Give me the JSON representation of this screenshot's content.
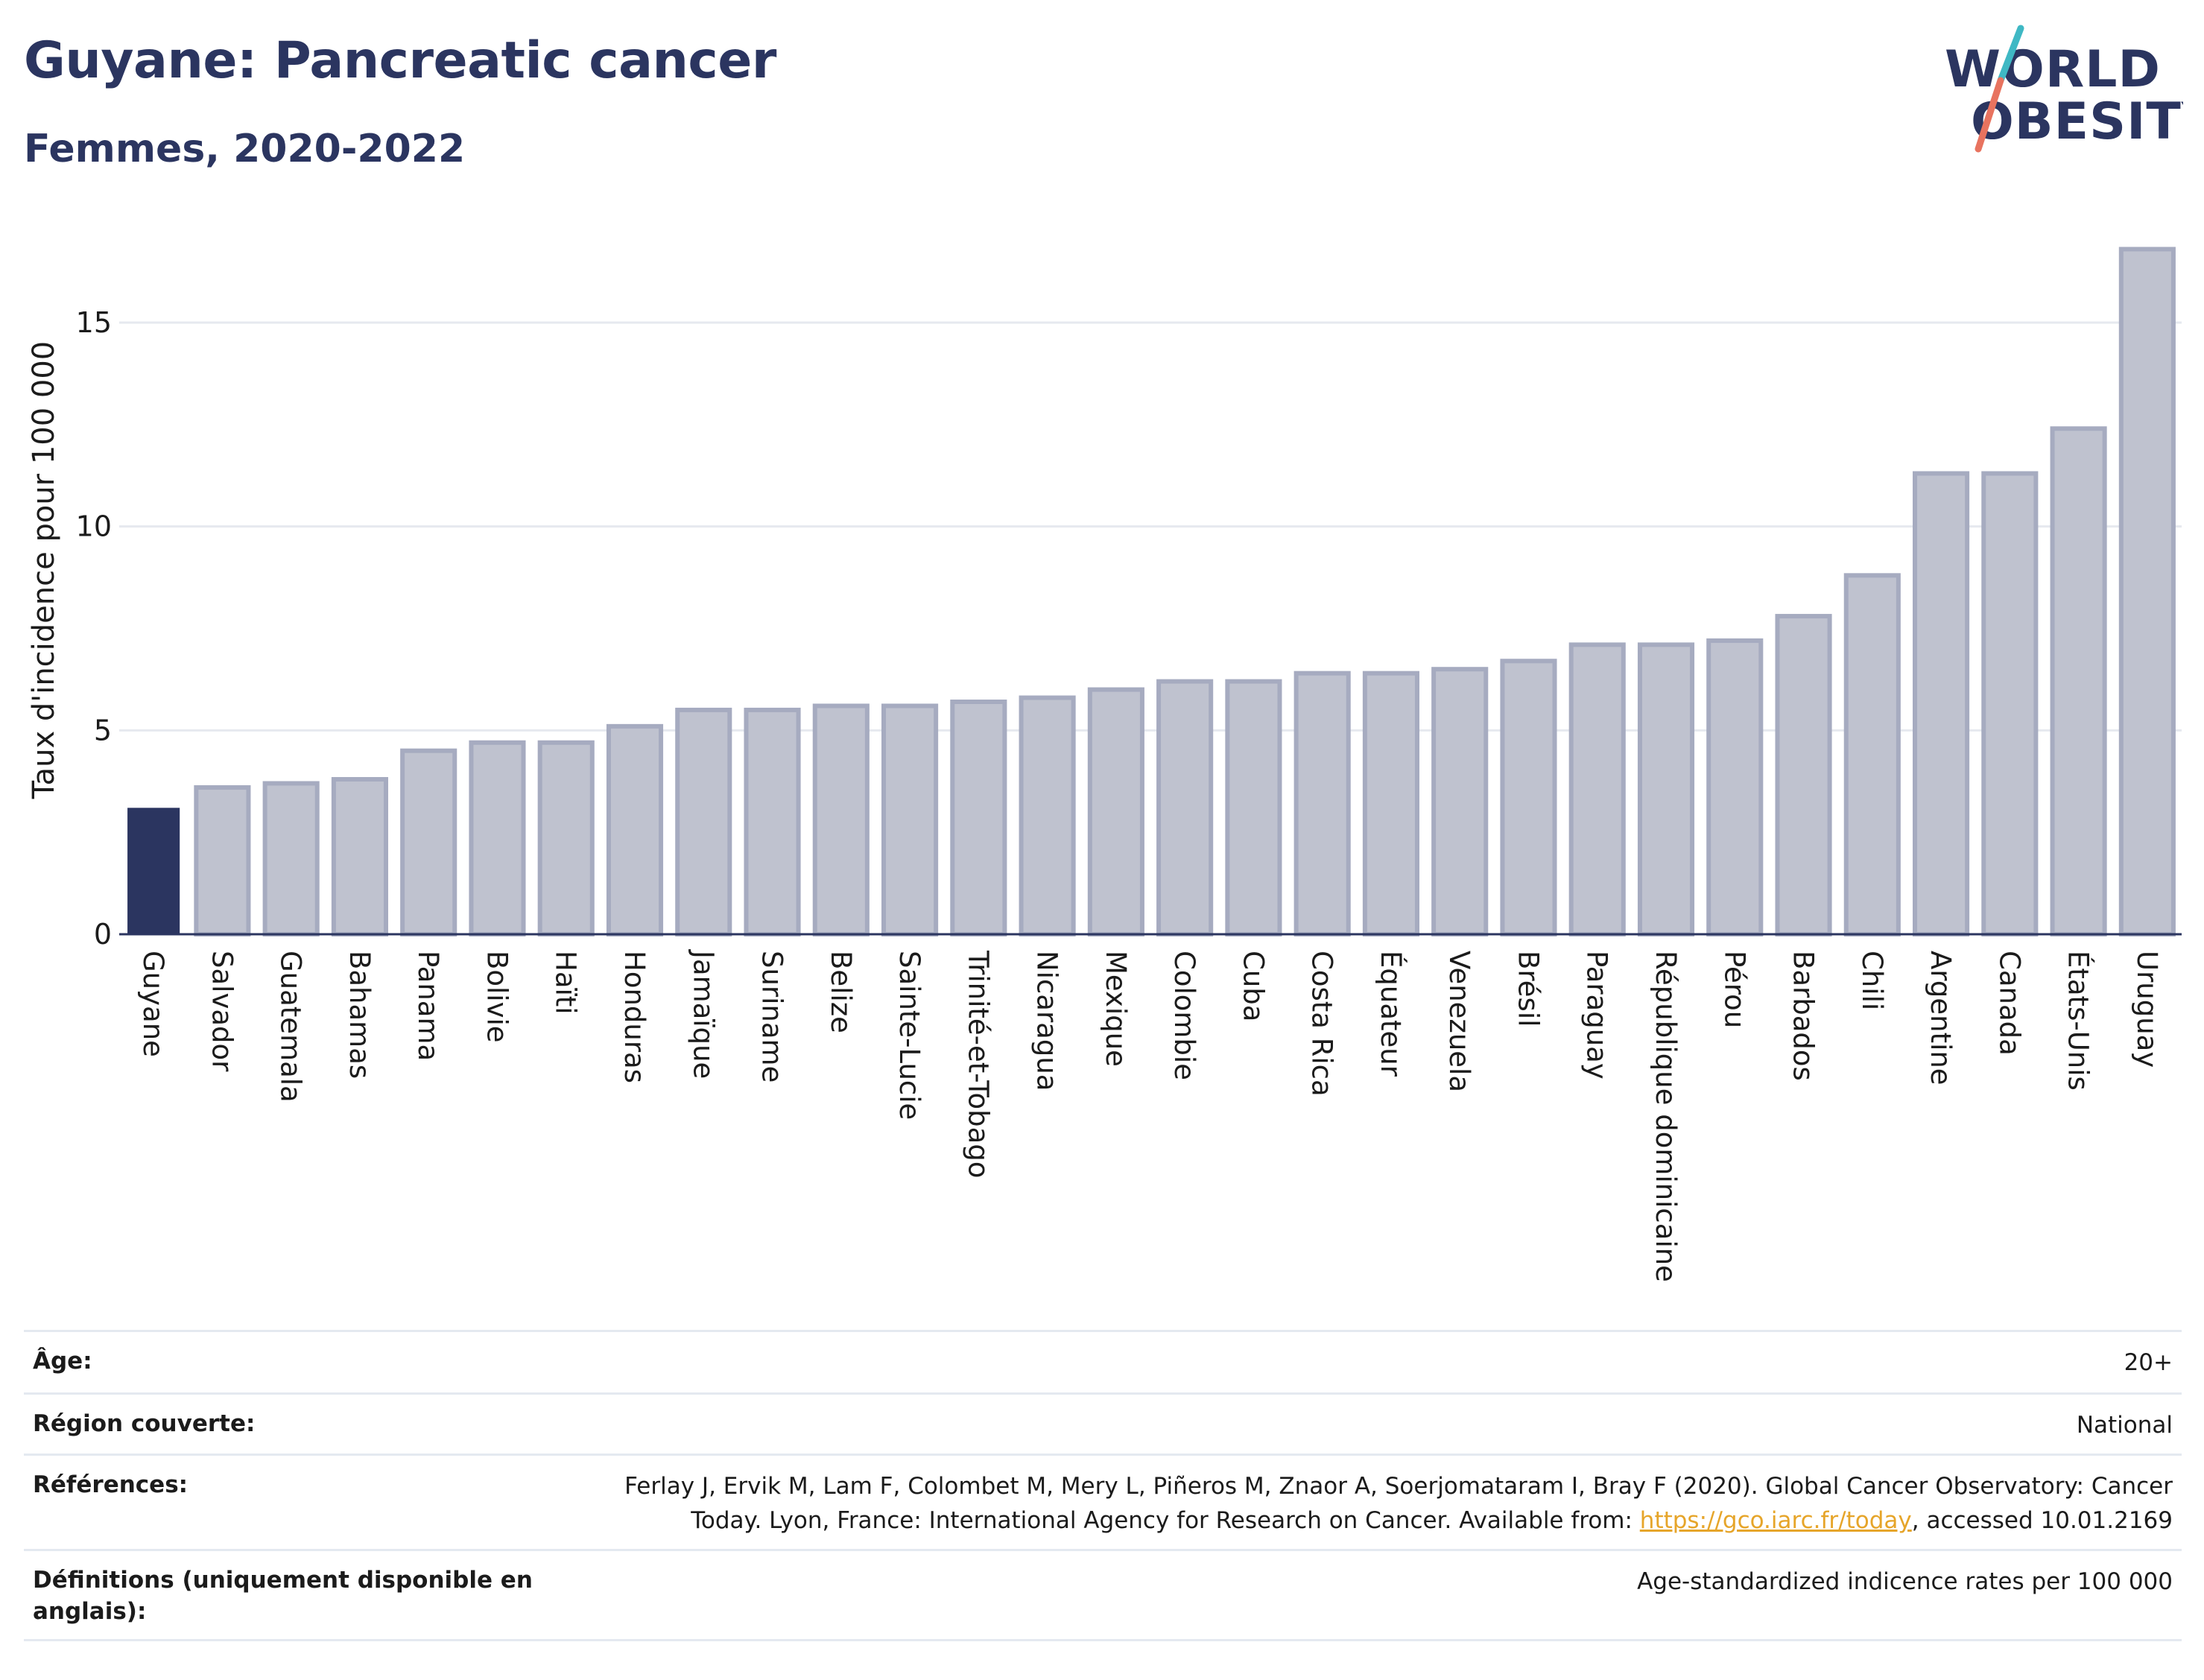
{
  "header": {
    "title": "Guyane: Pancreatic cancer",
    "subtitle": "Femmes, 2020-2022"
  },
  "logo": {
    "line1": "WORLD",
    "line2": "OBESITY",
    "colors": {
      "text": "#2b3560",
      "slash_teal": "#3fb8c4",
      "slash_coral": "#e8735f"
    }
  },
  "colors": {
    "highlight_bar": "#2b3560",
    "bar_fill": "#bfc2cf",
    "bar_stroke": "#a6abc0",
    "grid": "#e6e9ef",
    "axis": "#2b3560"
  },
  "chart_data": {
    "type": "bar",
    "ylabel": "Taux d'incidence pour 100 000",
    "ylim": [
      0,
      17.1
    ],
    "yticks": [
      0,
      5,
      10,
      15
    ],
    "grid": true,
    "highlight": "Guyane",
    "categories": [
      "Guyane",
      "Salvador",
      "Guatemala",
      "Bahamas",
      "Panama",
      "Bolivie",
      "Haïti",
      "Honduras",
      "Jamaïque",
      "Suriname",
      "Belize",
      "Sainte-Lucie",
      "Trinité-et-Tobago",
      "Nicaragua",
      "Mexique",
      "Colombie",
      "Cuba",
      "Costa Rica",
      "Équateur",
      "Venezuela",
      "Brésil",
      "Paraguay",
      "République dominicaine",
      "Pérou",
      "Barbados",
      "Chili",
      "Argentine",
      "Canada",
      "États-Unis",
      "Uruguay"
    ],
    "values": [
      3.1,
      3.6,
      3.7,
      3.8,
      4.5,
      4.7,
      4.7,
      5.1,
      5.5,
      5.5,
      5.6,
      5.6,
      5.7,
      5.8,
      6.0,
      6.2,
      6.2,
      6.4,
      6.4,
      6.5,
      6.7,
      7.1,
      7.1,
      7.2,
      7.8,
      8.8,
      11.3,
      11.3,
      12.4,
      16.8
    ]
  },
  "info": {
    "rows": [
      {
        "label": "Âge:",
        "value": "20+"
      },
      {
        "label": "Région couverte:",
        "value": "National"
      },
      {
        "label": "Références:",
        "value_line1": "Ferlay J, Ervik M, Lam F, Colombet M, Mery L, Piñeros M, Znaor A, Soerjomataram I, Bray F (2020). Global Cancer Observatory: Cancer",
        "value_line2_pre": "Today. Lyon, France: International Agency for Research on Cancer. Available from: ",
        "link_text": "https://gco.iarc.fr/today",
        "value_line2_post": ", accessed 10.01.2169"
      },
      {
        "label": "Définitions (uniquement disponible en anglais):",
        "value": "Age-standardized indicence rates per 100 000"
      }
    ]
  }
}
